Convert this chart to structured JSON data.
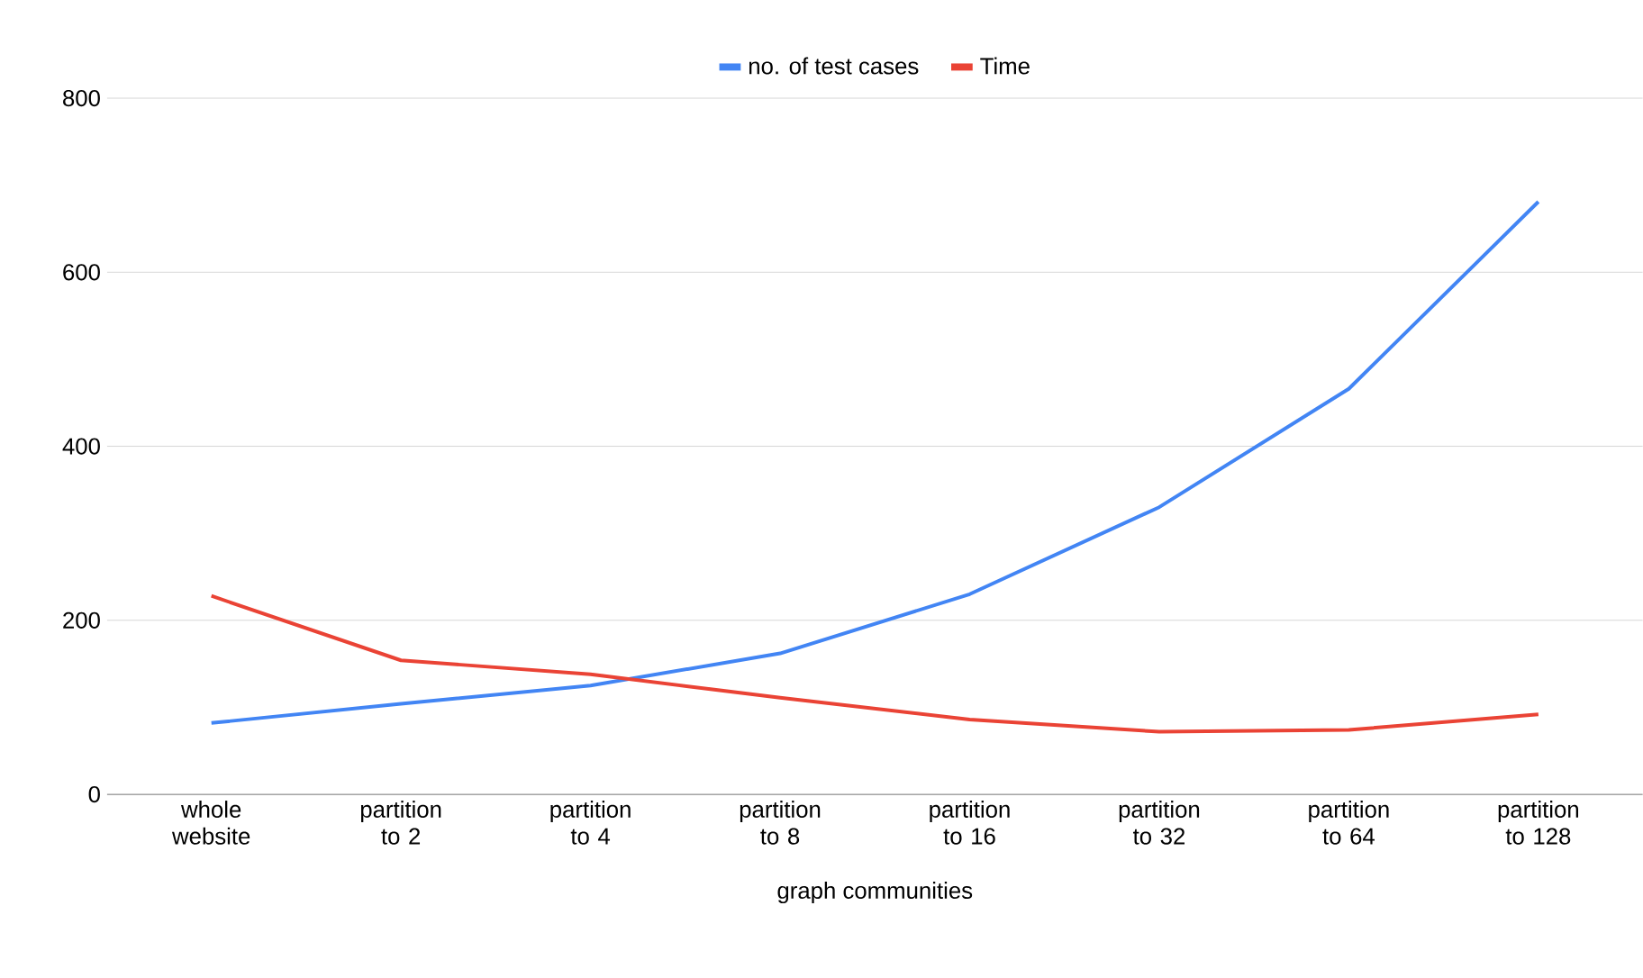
{
  "chart_data": {
    "type": "line",
    "xlabel": "graph communities",
    "categories": [
      "whole website",
      "partition to 2",
      "partition to 4",
      "partition to 8",
      "partition to 16",
      "partition to 32",
      "partition to 64",
      "partition to 128"
    ],
    "series": [
      {
        "name": "no. of test cases",
        "color": "#4285f4",
        "values": [
          82,
          104,
          125,
          162,
          230,
          330,
          466,
          681
        ]
      },
      {
        "name": "Time",
        "color": "#ea4335",
        "values": [
          228,
          154,
          138,
          111,
          86,
          72,
          74,
          92
        ]
      }
    ],
    "ylim": [
      0,
      800
    ],
    "yticks": [
      0,
      200,
      400,
      600,
      800
    ],
    "grid": "y",
    "legend": "top",
    "marker": "none",
    "line_style": "solid"
  }
}
